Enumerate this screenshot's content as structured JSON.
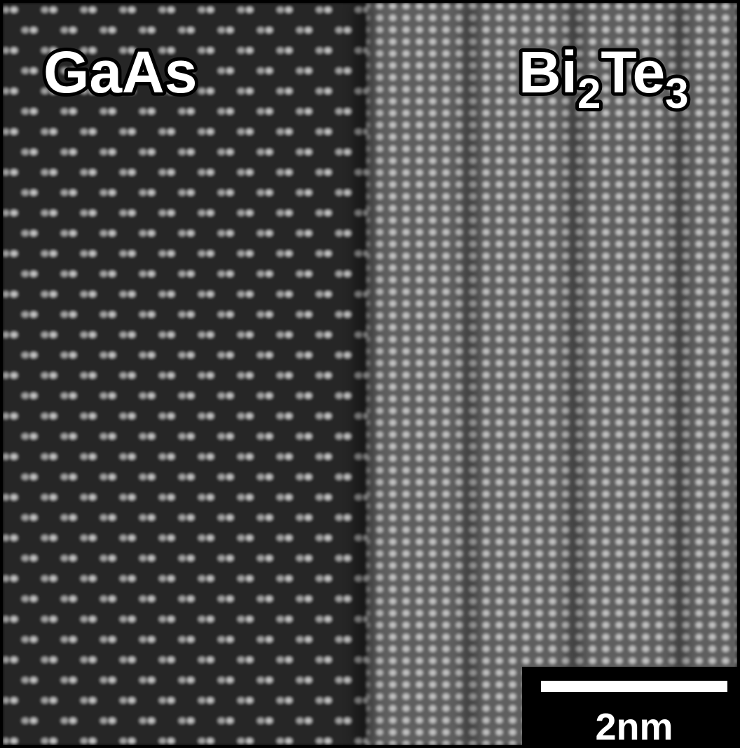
{
  "labels": {
    "left": "GaAs",
    "right": [
      "Bi",
      "2",
      "Te",
      "3"
    ]
  },
  "scale_bar": {
    "label": "2nm"
  }
}
